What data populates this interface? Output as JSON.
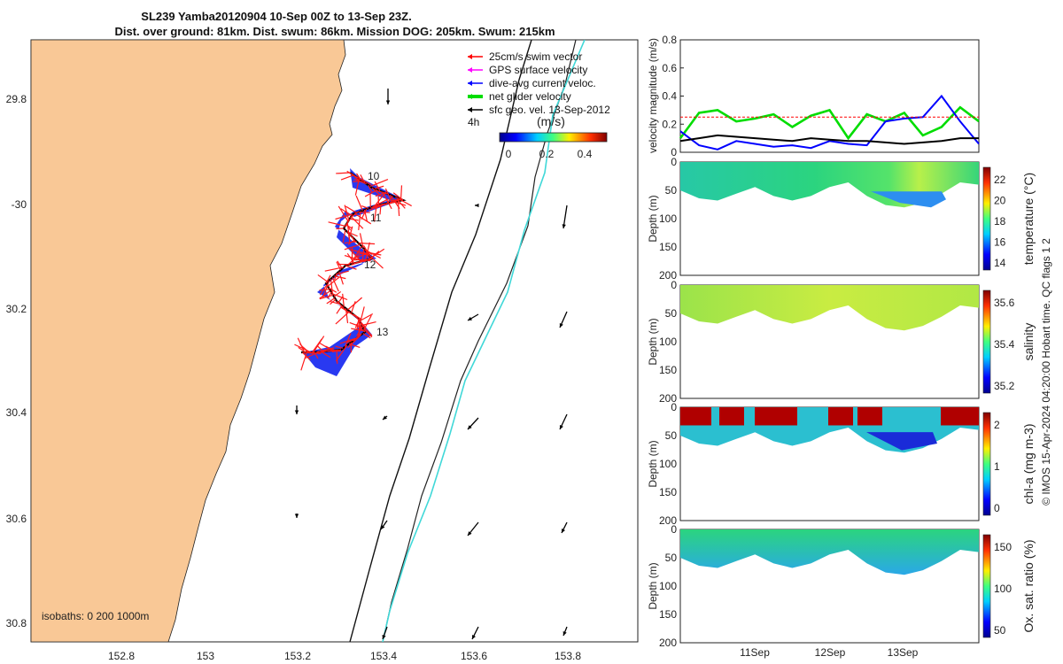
{
  "title": {
    "line1": "SL239 Yamba20120904 10-Sep 00Z to 13-Sep 23Z.",
    "line2": "Dist. over ground: 81km. Dist. swum: 86km. Mission DOG: 205km. Swum: 215km"
  },
  "map": {
    "lon_ticks": [
      "152.8",
      "153",
      "153.2",
      "153.4",
      "153.6",
      "153.8"
    ],
    "lat_ticks": [
      "29.8",
      "-30",
      "30.2",
      "30.4",
      "30.6",
      "30.8"
    ],
    "legend": [
      {
        "label": "25cm/s swim vector",
        "color": "#ff0000"
      },
      {
        "label": "GPS surface velocity",
        "color": "#ff00ff"
      },
      {
        "label": "dive-avg current veloc.",
        "color": "#0000ff"
      },
      {
        "label": "net glider velocity",
        "color": "#00dd00"
      },
      {
        "label": "sfc geo. vel. 13-Sep-2012",
        "color": "#000000"
      }
    ],
    "legend_time": "4h",
    "colorbar_unit": "(m/s)",
    "colorbar_ticks": [
      "0",
      "0.2",
      "0.4"
    ],
    "day_labels": [
      "10",
      "11",
      "12",
      "13"
    ],
    "isobaths": "isobaths: 0   200  1000m",
    "land_color": "#f9c896"
  },
  "chart_data": [
    {
      "type": "line",
      "ylabel": "velocity magnitude (m/s)",
      "ylim": [
        0,
        0.8
      ],
      "yticks": [
        "0.8",
        "0.6",
        "0.4",
        "0.2",
        "0"
      ],
      "x": [
        0,
        6,
        12,
        18,
        24,
        30,
        36,
        42,
        48,
        54,
        60,
        66,
        72,
        78,
        84,
        90,
        96
      ],
      "series": [
        {
          "color": "#00dd00",
          "values": [
            0.1,
            0.28,
            0.3,
            0.22,
            0.24,
            0.27,
            0.18,
            0.26,
            0.3,
            0.1,
            0.27,
            0.22,
            0.28,
            0.12,
            0.18,
            0.32,
            0.22
          ]
        },
        {
          "color": "#0000ff",
          "values": [
            0.15,
            0.05,
            0.02,
            0.08,
            0.06,
            0.04,
            0.05,
            0.03,
            0.08,
            0.06,
            0.05,
            0.22,
            0.24,
            0.25,
            0.4,
            0.22,
            0.06
          ]
        },
        {
          "color": "#000000",
          "values": [
            0.08,
            0.1,
            0.12,
            0.11,
            0.1,
            0.09,
            0.08,
            0.1,
            0.09,
            0.08,
            0.08,
            0.07,
            0.06,
            0.07,
            0.08,
            0.1,
            0.1
          ]
        },
        {
          "color": "#ff0000",
          "values": [
            0.25,
            0.25,
            0.25,
            0.25,
            0.25,
            0.25,
            0.25,
            0.25,
            0.25,
            0.25,
            0.25,
            0.25,
            0.25,
            0.25,
            0.25,
            0.25,
            0.25
          ]
        }
      ]
    },
    {
      "type": "heatmap",
      "ylabel": "Depth (m)",
      "cbar_label": "temperature (°C)",
      "cbar_ticks": [
        "22",
        "20",
        "18",
        "16",
        "14"
      ],
      "yticks": [
        "0",
        "50",
        "100",
        "150",
        "200"
      ]
    },
    {
      "type": "heatmap",
      "ylabel": "Depth (m)",
      "cbar_label": "salinity",
      "cbar_ticks": [
        "35.6",
        "35.4",
        "35.2"
      ],
      "yticks": [
        "0",
        "50",
        "100",
        "150",
        "200"
      ]
    },
    {
      "type": "heatmap",
      "ylabel": "Depth (m)",
      "cbar_label": "chl-a (mg m-3)",
      "cbar_ticks": [
        "2",
        "1",
        "0"
      ],
      "yticks": [
        "0",
        "50",
        "100",
        "150",
        "200"
      ]
    },
    {
      "type": "heatmap",
      "ylabel": "Depth (m)",
      "cbar_label": "Ox. sat. ratio (%)",
      "cbar_ticks": [
        "150",
        "100",
        "50"
      ],
      "yticks": [
        "0",
        "50",
        "100",
        "150",
        "200"
      ]
    }
  ],
  "time_ticks": [
    "11Sep",
    "12Sep",
    "13Sep"
  ],
  "credit": "© IMOS 15-Apr-2024 04:20:00 Hobart time. QC flags 1  2"
}
